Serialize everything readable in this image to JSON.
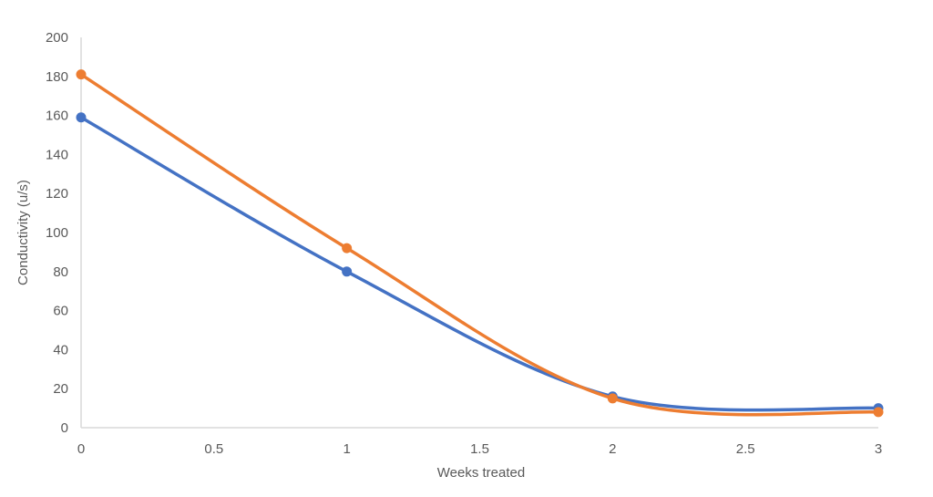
{
  "chart_data": {
    "type": "line",
    "smoothed": true,
    "title": "",
    "xlabel": "Weeks treated",
    "ylabel": "Conductivity (u/s)",
    "xlim": [
      0,
      3
    ],
    "ylim": [
      0,
      200
    ],
    "xticks": [
      0,
      0.5,
      1,
      1.5,
      2,
      2.5,
      3
    ],
    "xtick_labels": [
      "0",
      "0.5",
      "1",
      "1.5",
      "2",
      "2.5",
      "3"
    ],
    "yticks": [
      0,
      20,
      40,
      60,
      80,
      100,
      120,
      140,
      160,
      180,
      200
    ],
    "ytick_labels": [
      "0",
      "20",
      "40",
      "60",
      "80",
      "100",
      "120",
      "140",
      "160",
      "180",
      "200"
    ],
    "grid": false,
    "legend": "none",
    "x": [
      0,
      1,
      2,
      3
    ],
    "series": [
      {
        "values": [
          159,
          80,
          16,
          10
        ],
        "color": "#4472C4"
      },
      {
        "values": [
          181,
          92,
          15,
          8
        ],
        "color": "#ED7D31"
      }
    ]
  }
}
